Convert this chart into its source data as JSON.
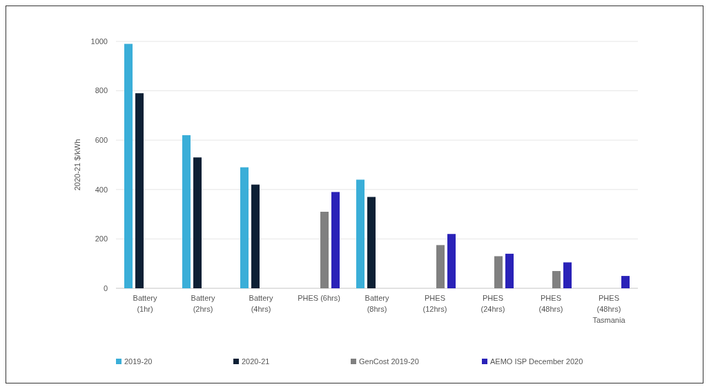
{
  "chart_data": {
    "type": "bar",
    "ylabel": "2020-21 $/kWh",
    "categories": [
      "Battery\n(1hr)",
      "Battery\n(2hrs)",
      "Battery\n(4hrs)",
      "PHES (6hrs)",
      "Battery\n(8hrs)",
      "PHES\n(12hrs)",
      "PHES\n(24hrs)",
      "PHES\n(48hrs)",
      "PHES\n(48hrs)\nTasmania"
    ],
    "series": [
      {
        "name": "2019-20",
        "color": "#3aaed8",
        "values": [
          990,
          620,
          490,
          null,
          440,
          null,
          null,
          null,
          null
        ]
      },
      {
        "name": "2020-21",
        "color": "#0d2035",
        "values": [
          790,
          530,
          420,
          null,
          370,
          null,
          null,
          null,
          null
        ]
      },
      {
        "name": "GenCost 2019-20",
        "color": "#808080",
        "values": [
          null,
          null,
          null,
          310,
          null,
          175,
          130,
          70,
          null
        ]
      },
      {
        "name": "AEMO ISP December 2020",
        "color": "#2a22b8",
        "values": [
          null,
          null,
          null,
          390,
          null,
          220,
          140,
          105,
          50
        ]
      }
    ],
    "ylim": [
      0,
      1000
    ],
    "yticks": [
      0,
      200,
      400,
      600,
      800,
      1000
    ],
    "grid": "y",
    "legend": "bottom"
  }
}
